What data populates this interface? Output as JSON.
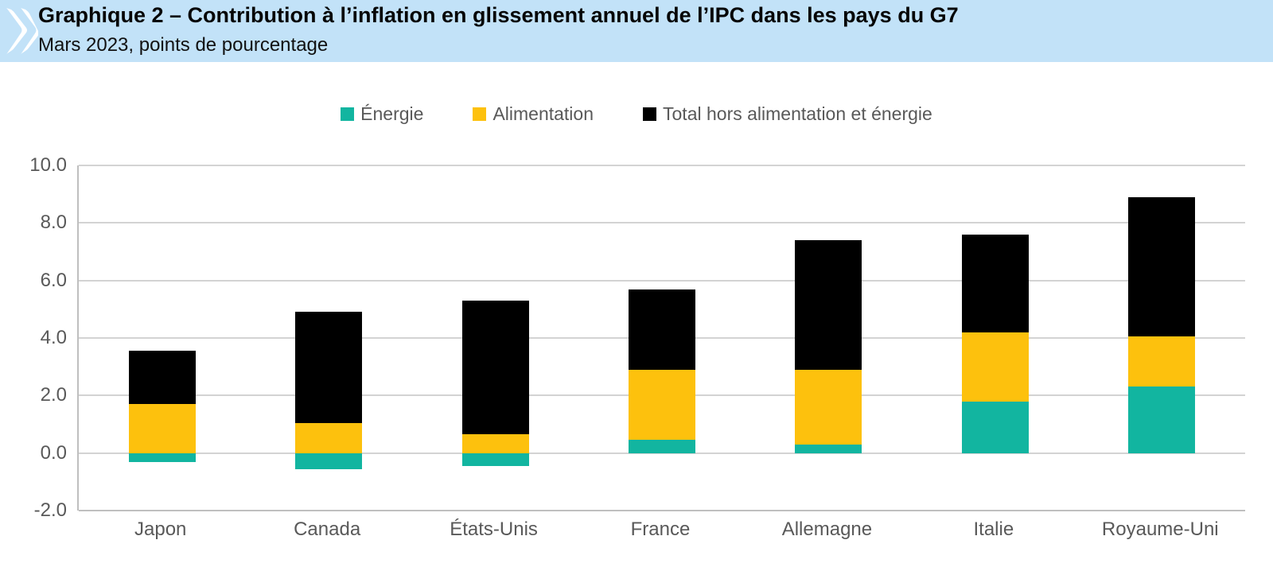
{
  "header": {
    "title": "Graphique 2 – Contribution à l’inflation en glissement annuel de l’IPC dans les pays du G7",
    "subtitle": "Mars 2023, points de pourcentage",
    "background_color": "#c2e2f8",
    "logo": "oecd-double-chevron"
  },
  "chart_data": {
    "type": "bar",
    "stacked": true,
    "title": "Contribution à l’inflation en glissement annuel de l’IPC dans les pays du G7",
    "subtitle": "Mars 2023, points de pourcentage",
    "xlabel": "",
    "ylabel": "points de pourcentage",
    "categories": [
      "Japon",
      "Canada",
      "États-Unis",
      "France",
      "Allemagne",
      "Italie",
      "Royaume-Uni"
    ],
    "series": [
      {
        "name": "Énergie",
        "color": "#12b5a0",
        "values": [
          -0.3,
          -0.55,
          -0.45,
          0.45,
          0.3,
          1.8,
          2.3
        ]
      },
      {
        "name": "Alimentation",
        "color": "#fdc10d",
        "values": [
          1.7,
          1.05,
          0.65,
          2.45,
          2.6,
          2.4,
          1.75
        ]
      },
      {
        "name": "Total hors alimentation et énergie",
        "color": "#000000",
        "values": [
          1.85,
          3.85,
          4.65,
          2.8,
          4.5,
          3.4,
          4.85
        ]
      }
    ],
    "stack_tops": [
      3.55,
      4.9,
      5.3,
      5.7,
      7.4,
      7.6,
      8.9
    ],
    "ylim": [
      -2,
      10
    ],
    "yticks": [
      10,
      8,
      6,
      4,
      2,
      0,
      -2
    ],
    "ytick_labels": [
      "10.0",
      "8.0",
      "6.0",
      "4.0",
      "2.0",
      "0.0",
      "-2.0"
    ],
    "grid": true,
    "legend_position": "top-center",
    "colors": {
      "gridline": "#d3d3d3",
      "axis_line": "#bfbfbf",
      "tick_label": "#595959",
      "legend_label": "#595959"
    }
  }
}
